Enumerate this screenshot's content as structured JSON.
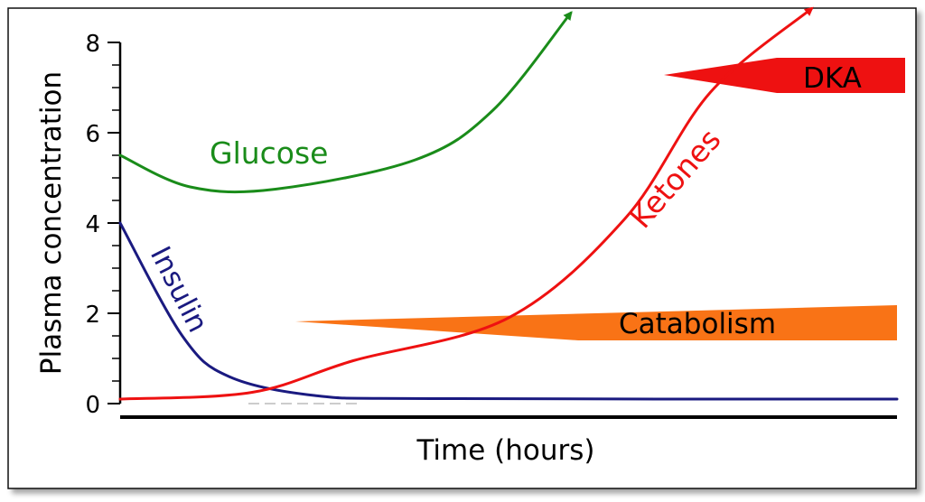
{
  "chart_data": {
    "type": "line",
    "title": "",
    "xlabel": "Time (hours)",
    "ylabel": "Plasma concentration",
    "ylim": [
      0,
      8
    ],
    "yticks": [
      0,
      2,
      4,
      6,
      8
    ],
    "xticks_labeled": false,
    "grid": false,
    "series": [
      {
        "name": "Glucose",
        "color": "#1a8c1a",
        "arrow_at_end": true,
        "points": [
          [
            0,
            5.5
          ],
          [
            0.09,
            4.8
          ],
          [
            0.2,
            4.75
          ],
          [
            0.38,
            5.4
          ],
          [
            0.48,
            6.5
          ],
          [
            0.58,
            8.65
          ]
        ]
      },
      {
        "name": "Insulin",
        "color": "#1a1a80",
        "arrow_at_end": false,
        "points": [
          [
            0,
            4.0
          ],
          [
            0.08,
            1.5
          ],
          [
            0.14,
            0.6
          ],
          [
            0.25,
            0.18
          ],
          [
            0.4,
            0.11
          ],
          [
            1.0,
            0.1
          ]
        ]
      },
      {
        "name": "Ketones",
        "color": "#ee1111",
        "arrow_at_end": true,
        "points": [
          [
            0,
            0.1
          ],
          [
            0.17,
            0.25
          ],
          [
            0.3,
            0.95
          ],
          [
            0.5,
            1.9
          ],
          [
            0.65,
            4.1
          ],
          [
            0.76,
            6.9
          ],
          [
            0.89,
            8.75
          ]
        ]
      }
    ],
    "bands": [
      {
        "label": "Catabolism",
        "color": "#f97316"
      },
      {
        "label": "DKA",
        "color": "#ee1111"
      }
    ]
  }
}
